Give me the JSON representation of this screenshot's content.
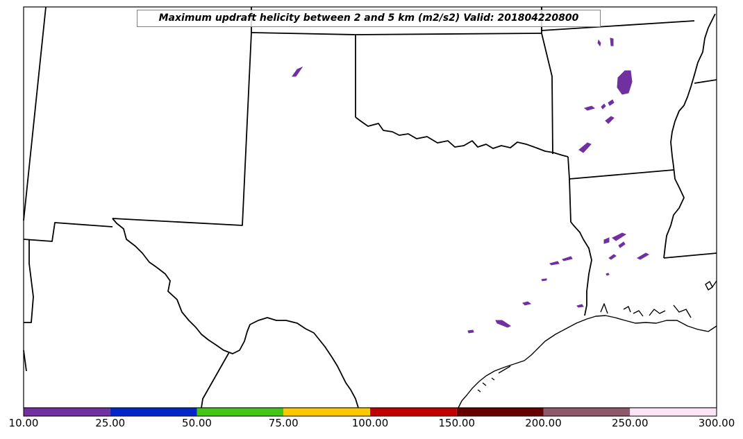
{
  "title": "Maximum updraft helicity between 2 and 5 km (m2/s2) Valid: 201804220800",
  "colorbar": {
    "ticks": [
      "10.00",
      "25.00",
      "50.00",
      "75.00",
      "100.00",
      "150.00",
      "200.00",
      "250.00",
      "300.00"
    ],
    "colors": [
      "#7030a0",
      "#0027c8",
      "#44c414",
      "#fcc800",
      "#c00000",
      "#660000",
      "#8c5a6a",
      "#fce4f6"
    ]
  },
  "theme": {
    "storm_color": "#7030a0",
    "border_color": "#000000",
    "background": "#ffffff"
  }
}
